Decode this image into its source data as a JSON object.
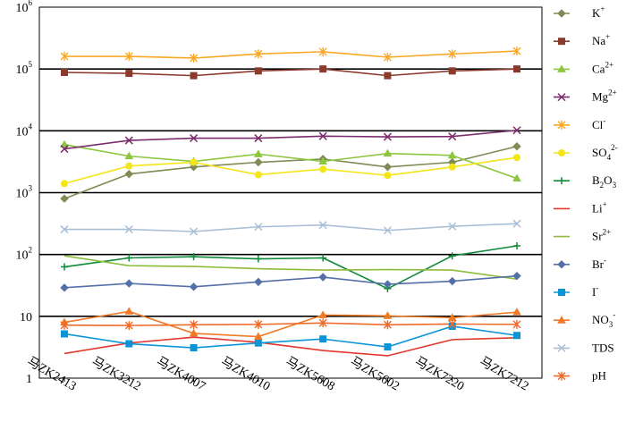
{
  "chart_data": {
    "type": "line",
    "y_scale": "log",
    "ylim": [
      1,
      1000000
    ],
    "grid": "horizontal at each decade",
    "legend_placement": "right",
    "categories": [
      "马ZK2413",
      "马ZK3212",
      "马ZK4007",
      "马ZK4010",
      "马ZK5608",
      "马ZK5602",
      "马ZK7220",
      "马ZK7212"
    ],
    "y_ticks": [
      {
        "value": 1,
        "base": "1",
        "exp": ""
      },
      {
        "value": 10,
        "base": "10",
        "exp": ""
      },
      {
        "value": 100,
        "base": "10",
        "exp": "2"
      },
      {
        "value": 1000,
        "base": "10",
        "exp": "3"
      },
      {
        "value": 10000,
        "base": "10",
        "exp": "4"
      },
      {
        "value": 100000,
        "base": "10",
        "exp": "5"
      },
      {
        "value": 1000000,
        "base": "10",
        "exp": "6"
      }
    ],
    "series": [
      {
        "name": "K",
        "sup": "+",
        "sub": "",
        "color": "#7f8a55",
        "marker": "diamond",
        "values": [
          800,
          2000,
          2600,
          3100,
          3500,
          2600,
          3100,
          5600
        ]
      },
      {
        "name": "Na",
        "sup": "+",
        "sub": "",
        "color": "#8b3a2c",
        "marker": "square",
        "values": [
          88000,
          85000,
          78000,
          93000,
          100000,
          78000,
          93000,
          100000
        ]
      },
      {
        "name": "Ca",
        "sup": "2+",
        "sub": "",
        "color": "#8dc63f",
        "marker": "triangle",
        "values": [
          6000,
          3900,
          3200,
          4200,
          3200,
          4300,
          4000,
          1700
        ]
      },
      {
        "name": "Mg",
        "sup": "2+",
        "sub": "",
        "color": "#7b2c6e",
        "marker": "x",
        "values": [
          5100,
          7000,
          7600,
          7600,
          8200,
          8000,
          8100,
          10200
        ]
      },
      {
        "name": "Cl",
        "sup": "-",
        "sub": "",
        "color": "#f9a825",
        "marker": "asterisk",
        "values": [
          160000,
          160000,
          150000,
          175000,
          190000,
          155000,
          175000,
          195000
        ]
      },
      {
        "name": "SO",
        "sup": "2-",
        "sub": "4",
        "color": "#f4e518",
        "marker": "circle",
        "values": [
          1400,
          2700,
          3100,
          1950,
          2400,
          1900,
          2600,
          3700
        ]
      },
      {
        "name": "B",
        "sup": "",
        "sub": "2",
        "tail": "O",
        "tail_sub": "3",
        "color": "#0f8a3a",
        "marker": "plus",
        "values": [
          63,
          88,
          92,
          85,
          88,
          28,
          95,
          138
        ]
      },
      {
        "name": "Li",
        "sup": "+",
        "sub": "",
        "color": "#e03a2e",
        "marker": "none",
        "values": [
          2.5,
          3.7,
          4.6,
          3.8,
          2.8,
          2.3,
          4.2,
          4.5
        ]
      },
      {
        "name": "Sr",
        "sup": "2+",
        "sub": "",
        "color": "#8dbb3a",
        "marker": "none",
        "values": [
          95,
          66,
          64,
          59,
          56,
          57,
          56,
          40
        ]
      },
      {
        "name": "Br",
        "sup": "-",
        "sub": "",
        "color": "#5470a8",
        "marker": "diamond",
        "values": [
          29,
          34,
          30,
          36,
          43,
          33,
          37,
          45
        ]
      },
      {
        "name": "I",
        "sup": "-",
        "sub": "",
        "color": "#0b94d6",
        "marker": "square",
        "values": [
          5.2,
          3.6,
          3.1,
          3.7,
          4.3,
          3.2,
          6.9,
          4.9
        ]
      },
      {
        "name": "NO",
        "sup": "-",
        "sub": "3",
        "color": "#f07a26",
        "marker": "triangle",
        "values": [
          8,
          12,
          5.3,
          4.7,
          10.5,
          10.2,
          9.5,
          11.7
        ]
      },
      {
        "name": "TDS",
        "sup": "",
        "sub": "",
        "color": "#a9bfd6",
        "marker": "x",
        "values": [
          255,
          255,
          235,
          280,
          300,
          245,
          285,
          315
        ]
      },
      {
        "name": "pH",
        "sup": "",
        "sub": "",
        "color": "#ef6a2a",
        "marker": "asterisk",
        "values": [
          7.2,
          7.1,
          7.3,
          7.4,
          7.8,
          7.3,
          7.5,
          7.4
        ]
      }
    ]
  }
}
